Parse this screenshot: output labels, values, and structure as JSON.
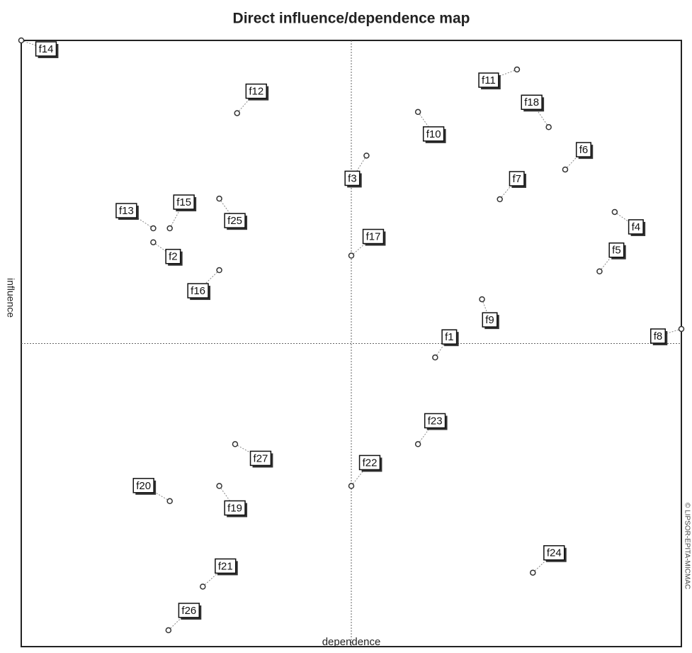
{
  "chart_data": {
    "type": "scatter",
    "title": "Direct influence/dependence map",
    "xlabel": "dependence",
    "ylabel": "influence",
    "annotation": "© LIPSOR-EPITA-MICMAC",
    "labels": [
      "f1",
      "f2",
      "f3",
      "f4",
      "f5",
      "f6",
      "f7",
      "f8",
      "f9",
      "f10",
      "f11",
      "f12",
      "f13",
      "f14",
      "f15",
      "f16",
      "f17",
      "f18",
      "f19",
      "f20",
      "f21",
      "f22",
      "f23",
      "f24",
      "f25",
      "f26",
      "f27"
    ],
    "x": [
      62.7,
      20.0,
      52.3,
      89.9,
      87.6,
      82.4,
      72.5,
      100,
      69.8,
      60.1,
      75.1,
      32.7,
      20.0,
      0,
      22.5,
      30.0,
      50.0,
      79.9,
      30.0,
      22.5,
      27.5,
      50.0,
      60.1,
      77.5,
      30.0,
      22.3,
      32.4
    ],
    "y": [
      47.7,
      66.7,
      81.0,
      71.7,
      61.9,
      78.7,
      73.8,
      52.4,
      57.3,
      88.2,
      95.2,
      88.0,
      69.0,
      100,
      69.0,
      62.1,
      64.5,
      85.7,
      26.5,
      24.0,
      9.9,
      26.5,
      33.4,
      12.2,
      73.9,
      2.7,
      33.4
    ],
    "xlim": [
      0,
      100
    ],
    "ylim": [
      0,
      100
    ],
    "crosshair": true,
    "color": "#333333"
  }
}
